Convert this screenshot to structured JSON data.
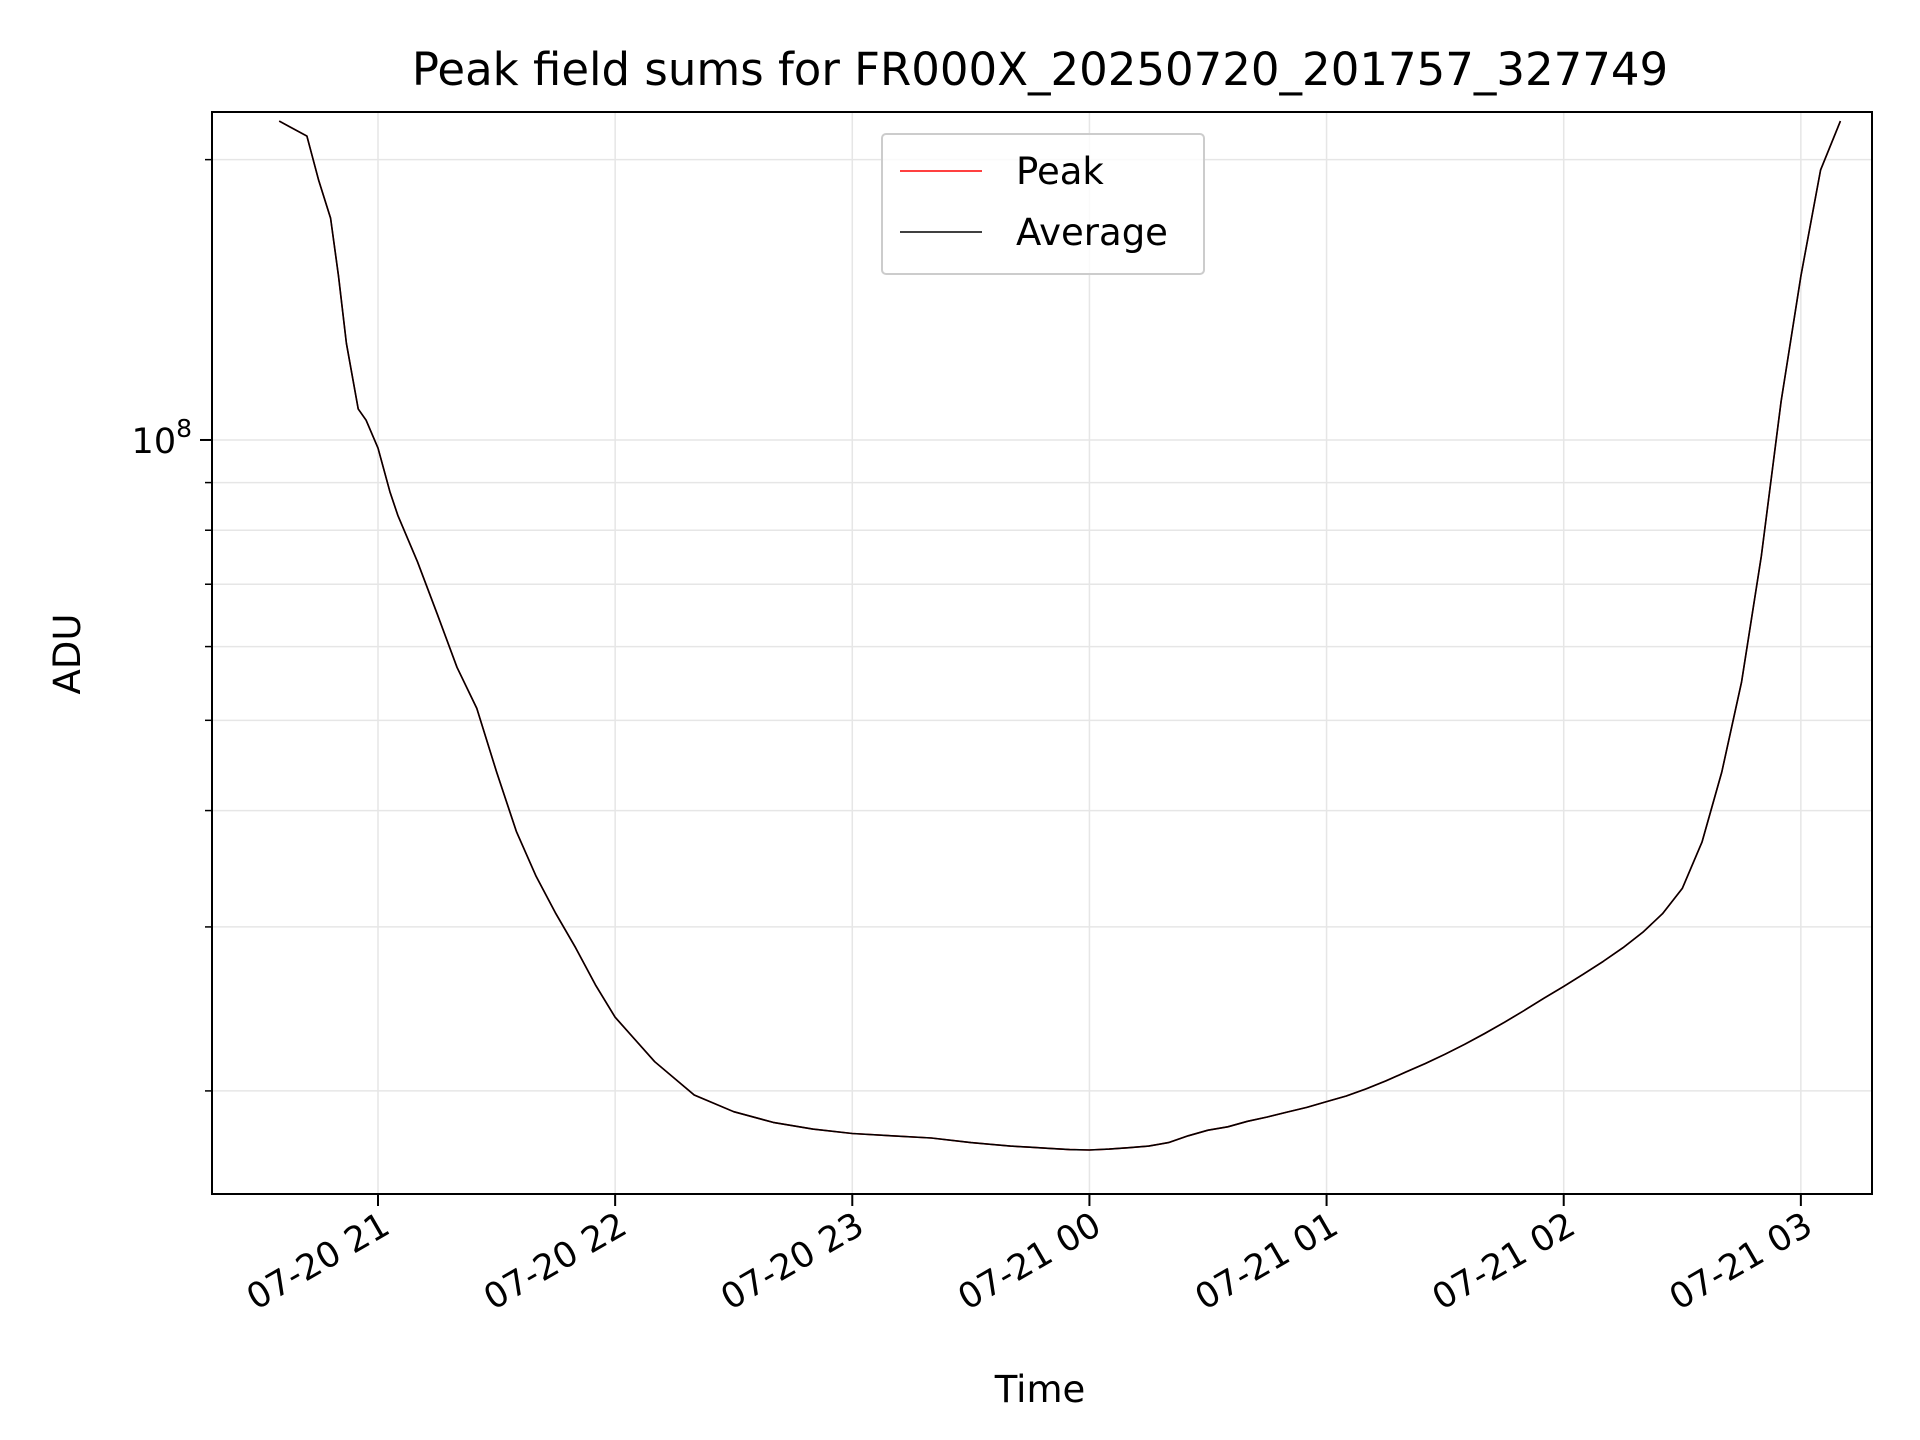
{
  "chart_data": {
    "type": "line",
    "title": "Peak field sums for FR000X_20250720_201757_327749",
    "xlabel": "Time",
    "ylabel": "ADU",
    "yscale": "log",
    "grid": true,
    "legend_placement": "upper-center",
    "xlim": [
      "2025-07-20T20:18",
      "2025-07-21T03:18"
    ],
    "ylim": [
      15500000,
      225000000
    ],
    "x_ticks": [
      {
        "value": "2025-07-20T21:00",
        "label": "07-20 21"
      },
      {
        "value": "2025-07-20T22:00",
        "label": "07-20 22"
      },
      {
        "value": "2025-07-20T23:00",
        "label": "07-20 23"
      },
      {
        "value": "2025-07-21T00:00",
        "label": "07-21 00"
      },
      {
        "value": "2025-07-21T01:00",
        "label": "07-21 01"
      },
      {
        "value": "2025-07-21T02:00",
        "label": "07-21 02"
      },
      {
        "value": "2025-07-21T03:00",
        "label": "07-21 03"
      }
    ],
    "y_major_ticks": [
      {
        "value": 100000000,
        "label_base": "10",
        "label_exp": "8"
      }
    ],
    "y_minor_ticks": [
      20000000,
      30000000,
      40000000,
      50000000,
      60000000,
      70000000,
      80000000,
      90000000,
      200000000
    ],
    "series": [
      {
        "name": "Peak",
        "color": "#ff0000",
        "x": [
          "2025-07-20T20:35",
          "2025-07-20T20:42",
          "2025-07-20T20:45",
          "2025-07-20T20:48",
          "2025-07-20T20:50",
          "2025-07-20T20:52",
          "2025-07-20T20:55",
          "2025-07-20T20:57",
          "2025-07-20T21:00",
          "2025-07-20T21:03",
          "2025-07-20T21:05",
          "2025-07-20T21:10",
          "2025-07-20T21:15",
          "2025-07-20T21:20",
          "2025-07-20T21:25",
          "2025-07-20T21:30",
          "2025-07-20T21:35",
          "2025-07-20T21:40",
          "2025-07-20T21:45",
          "2025-07-20T21:50",
          "2025-07-20T21:55",
          "2025-07-20T22:00",
          "2025-07-20T22:10",
          "2025-07-20T22:20",
          "2025-07-20T22:30",
          "2025-07-20T22:40",
          "2025-07-20T22:50",
          "2025-07-20T23:00",
          "2025-07-20T23:10",
          "2025-07-20T23:20",
          "2025-07-20T23:30",
          "2025-07-20T23:40",
          "2025-07-20T23:45",
          "2025-07-20T23:50",
          "2025-07-20T23:55",
          "2025-07-21T00:00",
          "2025-07-21T00:05",
          "2025-07-21T00:10",
          "2025-07-21T00:15",
          "2025-07-21T00:20",
          "2025-07-21T00:25",
          "2025-07-21T00:30",
          "2025-07-21T00:35",
          "2025-07-21T00:40",
          "2025-07-21T00:45",
          "2025-07-21T00:50",
          "2025-07-21T00:55",
          "2025-07-21T01:00",
          "2025-07-21T01:05",
          "2025-07-21T01:10",
          "2025-07-21T01:15",
          "2025-07-21T01:20",
          "2025-07-21T01:25",
          "2025-07-21T01:30",
          "2025-07-21T01:35",
          "2025-07-21T01:40",
          "2025-07-21T01:45",
          "2025-07-21T01:50",
          "2025-07-21T01:55",
          "2025-07-21T02:00",
          "2025-07-21T02:05",
          "2025-07-21T02:10",
          "2025-07-21T02:15",
          "2025-07-21T02:20",
          "2025-07-21T02:25",
          "2025-07-21T02:30",
          "2025-07-21T02:35",
          "2025-07-21T02:40",
          "2025-07-21T02:45",
          "2025-07-21T02:50",
          "2025-07-21T02:55",
          "2025-07-21T03:00",
          "2025-07-21T03:05",
          "2025-07-21T03:10"
        ],
        "y": [
          220000000,
          212000000,
          190000000,
          173000000,
          150000000,
          127000000,
          108000000,
          105000000,
          98000000,
          88000000,
          83000000,
          74000000,
          65000000,
          57000000,
          51500000,
          44000000,
          38000000,
          34000000,
          31000000,
          28500000,
          26000000,
          24000000,
          21500000,
          19800000,
          19000000,
          18500000,
          18200000,
          18000000,
          17900000,
          17800000,
          17600000,
          17450000,
          17400000,
          17350000,
          17300000,
          17280000,
          17320000,
          17380000,
          17450000,
          17600000,
          17900000,
          18150000,
          18300000,
          18550000,
          18750000,
          18980000,
          19200000,
          19480000,
          19750000,
          20100000,
          20500000,
          20950000,
          21400000,
          21900000,
          22450000,
          23050000,
          23700000,
          24400000,
          25150000,
          25900000,
          26700000,
          27550000,
          28500000,
          29600000,
          31000000,
          33000000,
          37000000,
          44000000,
          55000000,
          75000000,
          110000000,
          150000000,
          195000000,
          220000000
        ]
      },
      {
        "name": "Average",
        "color": "#000000",
        "x": [
          "2025-07-20T20:35",
          "2025-07-20T20:42",
          "2025-07-20T20:45",
          "2025-07-20T20:48",
          "2025-07-20T20:50",
          "2025-07-20T20:52",
          "2025-07-20T20:55",
          "2025-07-20T20:57",
          "2025-07-20T21:00",
          "2025-07-20T21:03",
          "2025-07-20T21:05",
          "2025-07-20T21:10",
          "2025-07-20T21:15",
          "2025-07-20T21:20",
          "2025-07-20T21:25",
          "2025-07-20T21:30",
          "2025-07-20T21:35",
          "2025-07-20T21:40",
          "2025-07-20T21:45",
          "2025-07-20T21:50",
          "2025-07-20T21:55",
          "2025-07-20T22:00",
          "2025-07-20T22:10",
          "2025-07-20T22:20",
          "2025-07-20T22:30",
          "2025-07-20T22:40",
          "2025-07-20T22:50",
          "2025-07-20T23:00",
          "2025-07-20T23:10",
          "2025-07-20T23:20",
          "2025-07-20T23:30",
          "2025-07-20T23:40",
          "2025-07-20T23:45",
          "2025-07-20T23:50",
          "2025-07-20T23:55",
          "2025-07-21T00:00",
          "2025-07-21T00:05",
          "2025-07-21T00:10",
          "2025-07-21T00:15",
          "2025-07-21T00:20",
          "2025-07-21T00:25",
          "2025-07-21T00:30",
          "2025-07-21T00:35",
          "2025-07-21T00:40",
          "2025-07-21T00:45",
          "2025-07-21T00:50",
          "2025-07-21T00:55",
          "2025-07-21T01:00",
          "2025-07-21T01:05",
          "2025-07-21T01:10",
          "2025-07-21T01:15",
          "2025-07-21T01:20",
          "2025-07-21T01:25",
          "2025-07-21T01:30",
          "2025-07-21T01:35",
          "2025-07-21T01:40",
          "2025-07-21T01:45",
          "2025-07-21T01:50",
          "2025-07-21T01:55",
          "2025-07-21T02:00",
          "2025-07-21T02:05",
          "2025-07-21T02:10",
          "2025-07-21T02:15",
          "2025-07-21T02:20",
          "2025-07-21T02:25",
          "2025-07-21T02:30",
          "2025-07-21T02:35",
          "2025-07-21T02:40",
          "2025-07-21T02:45",
          "2025-07-21T02:50",
          "2025-07-21T02:55",
          "2025-07-21T03:00",
          "2025-07-21T03:05",
          "2025-07-21T03:10"
        ],
        "y": [
          220000000,
          212000000,
          190000000,
          173000000,
          150000000,
          127000000,
          108000000,
          105000000,
          98000000,
          88000000,
          83000000,
          74000000,
          65000000,
          57000000,
          51500000,
          44000000,
          38000000,
          34000000,
          31000000,
          28500000,
          26000000,
          24000000,
          21500000,
          19800000,
          19000000,
          18500000,
          18200000,
          18000000,
          17900000,
          17800000,
          17600000,
          17450000,
          17400000,
          17350000,
          17300000,
          17280000,
          17320000,
          17380000,
          17450000,
          17600000,
          17900000,
          18150000,
          18300000,
          18550000,
          18750000,
          18980000,
          19200000,
          19480000,
          19750000,
          20100000,
          20500000,
          20950000,
          21400000,
          21900000,
          22450000,
          23050000,
          23700000,
          24400000,
          25150000,
          25900000,
          26700000,
          27550000,
          28500000,
          29600000,
          31000000,
          33000000,
          37000000,
          44000000,
          55000000,
          75000000,
          110000000,
          150000000,
          195000000,
          220000000
        ]
      }
    ]
  }
}
